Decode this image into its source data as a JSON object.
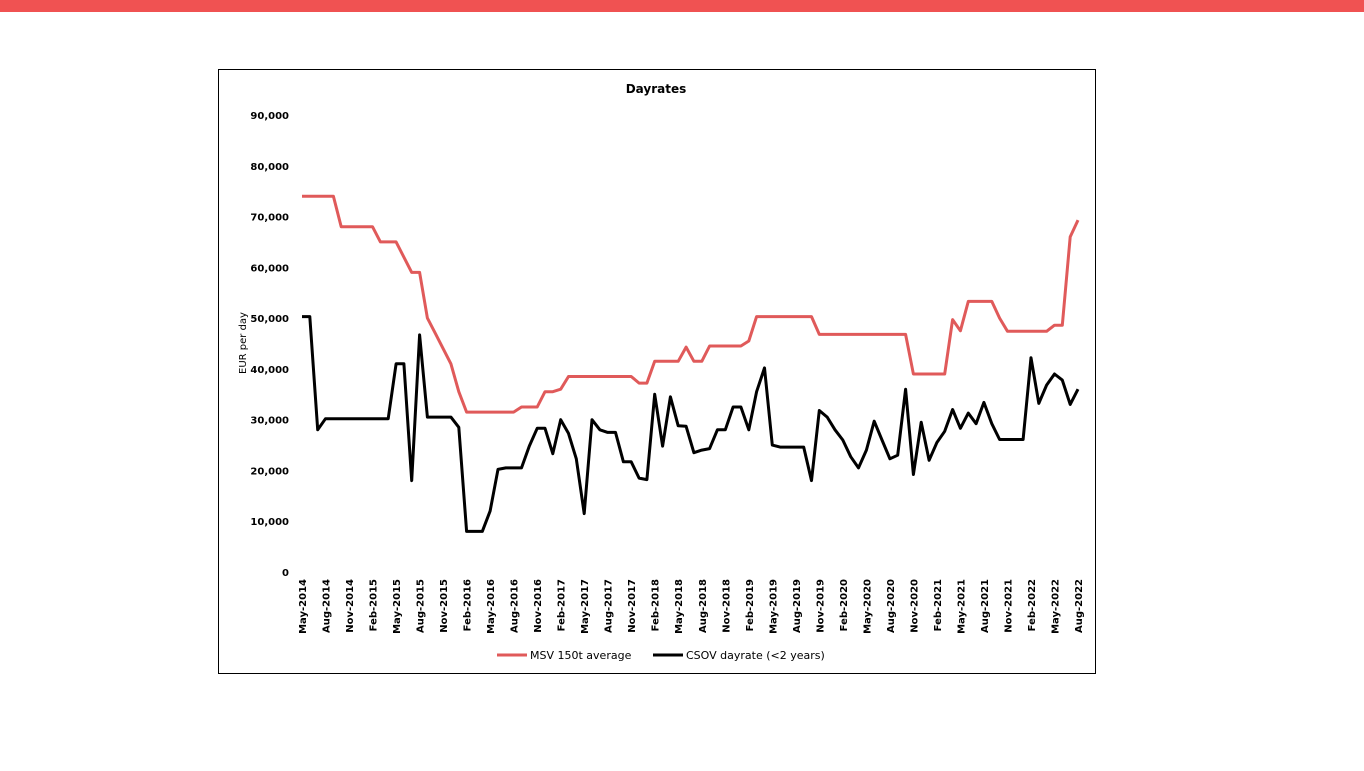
{
  "chart_data": {
    "type": "line",
    "title": "Dayrates",
    "y_label": "EUR per day",
    "categories": [
      "May-2014",
      null,
      null,
      "Aug-2014",
      null,
      null,
      "Nov-2014",
      null,
      null,
      "Feb-2015",
      null,
      null,
      "May-2015",
      null,
      null,
      "Aug-2015",
      null,
      null,
      "Nov-2015",
      null,
      null,
      "Feb-2016",
      null,
      null,
      "May-2016",
      null,
      null,
      "Aug-2016",
      null,
      null,
      "Nov-2016",
      null,
      null,
      "Feb-2017",
      null,
      null,
      "May-2017",
      null,
      null,
      "Aug-2017",
      null,
      null,
      "Nov-2017",
      null,
      null,
      "Feb-2018",
      null,
      null,
      "May-2018",
      null,
      null,
      "Aug-2018",
      null,
      null,
      "Nov-2018",
      null,
      null,
      "Feb-2019",
      null,
      null,
      "May-2019",
      null,
      null,
      "Aug-2019",
      null,
      null,
      "Nov-2019",
      null,
      null,
      "Feb-2020",
      null,
      null,
      "May-2020",
      null,
      null,
      "Aug-2020",
      null,
      null,
      "Nov-2020",
      null,
      null,
      "Feb-2021",
      null,
      null,
      "May-2021",
      null,
      null,
      "Aug-2021",
      null,
      null,
      "Nov-2021",
      null,
      null,
      "Feb-2022",
      null,
      null,
      "May-2022",
      null,
      null,
      "Aug-2022"
    ],
    "series": [
      {
        "name": "MSV 150t average",
        "color": "#e05a5a",
        "values": [
          74000,
          74000,
          74000,
          74000,
          74000,
          68000,
          68000,
          68000,
          68000,
          68000,
          65000,
          65000,
          65000,
          62000,
          59000,
          59000,
          50000,
          47000,
          44000,
          41000,
          35500,
          31500,
          31500,
          31500,
          31500,
          31500,
          31500,
          31500,
          32500,
          32500,
          32500,
          35500,
          35500,
          36000,
          38500,
          38500,
          38500,
          38500,
          38500,
          38500,
          38500,
          38500,
          38500,
          37200,
          37200,
          41500,
          41500,
          41500,
          41500,
          44300,
          41500,
          41500,
          44500,
          44500,
          44500,
          44500,
          44500,
          45500,
          50300,
          50300,
          50300,
          50300,
          50300,
          50300,
          50300,
          50300,
          46800,
          46800,
          46800,
          46800,
          46800,
          46800,
          46800,
          46800,
          46800,
          46800,
          46800,
          46800,
          39000,
          39000,
          39000,
          39000,
          39000,
          49700,
          47500,
          53300,
          53300,
          53300,
          53300,
          50000,
          47400,
          47400,
          47400,
          47400,
          47400,
          47400,
          48600,
          48600,
          66000,
          69300
        ]
      },
      {
        "name": "CSOV dayrate (<2 years)",
        "color": "#000000",
        "values": [
          50300,
          50300,
          28000,
          30200,
          30200,
          30200,
          30200,
          30200,
          30200,
          30200,
          30200,
          30200,
          41000,
          41000,
          18000,
          46700,
          30500,
          30500,
          30500,
          30500,
          28500,
          8000,
          8000,
          8000,
          12000,
          20200,
          20500,
          20500,
          20500,
          24800,
          28300,
          28300,
          23300,
          30000,
          27300,
          22300,
          11500,
          30000,
          28000,
          27500,
          27500,
          21700,
          21700,
          18500,
          18200,
          35000,
          24800,
          34500,
          28800,
          28700,
          23500,
          24000,
          24300,
          28000,
          28000,
          32500,
          32500,
          28000,
          35500,
          40200,
          25000,
          24600,
          24600,
          24600,
          24600,
          18000,
          31800,
          30500,
          28000,
          26000,
          22700,
          20500,
          24000,
          29700,
          26000,
          22300,
          23000,
          36000,
          19200,
          29500,
          22000,
          25500,
          27700,
          32000,
          28300,
          31300,
          29200,
          33400,
          29200,
          26100,
          26100,
          26100,
          26100,
          42200,
          33200,
          36800,
          39000,
          37800,
          33000,
          36000
        ]
      }
    ],
    "ylim": [
      0,
      90000
    ],
    "yticks": [
      0,
      {
        "value": 10000,
        "label": "10,000"
      },
      {
        "value": 20000,
        "label": "20,000"
      },
      {
        "value": 30000,
        "label": "30,000"
      },
      {
        "value": 40000,
        "label": "40,000"
      },
      {
        "value": 50000,
        "label": "50,000"
      },
      {
        "value": 60000,
        "label": "60,000"
      },
      {
        "value": 70000,
        "label": "70,000"
      },
      {
        "value": 80000,
        "label": "80,000"
      },
      {
        "value": 90000,
        "label": "90,000"
      }
    ],
    "grid": false
  }
}
